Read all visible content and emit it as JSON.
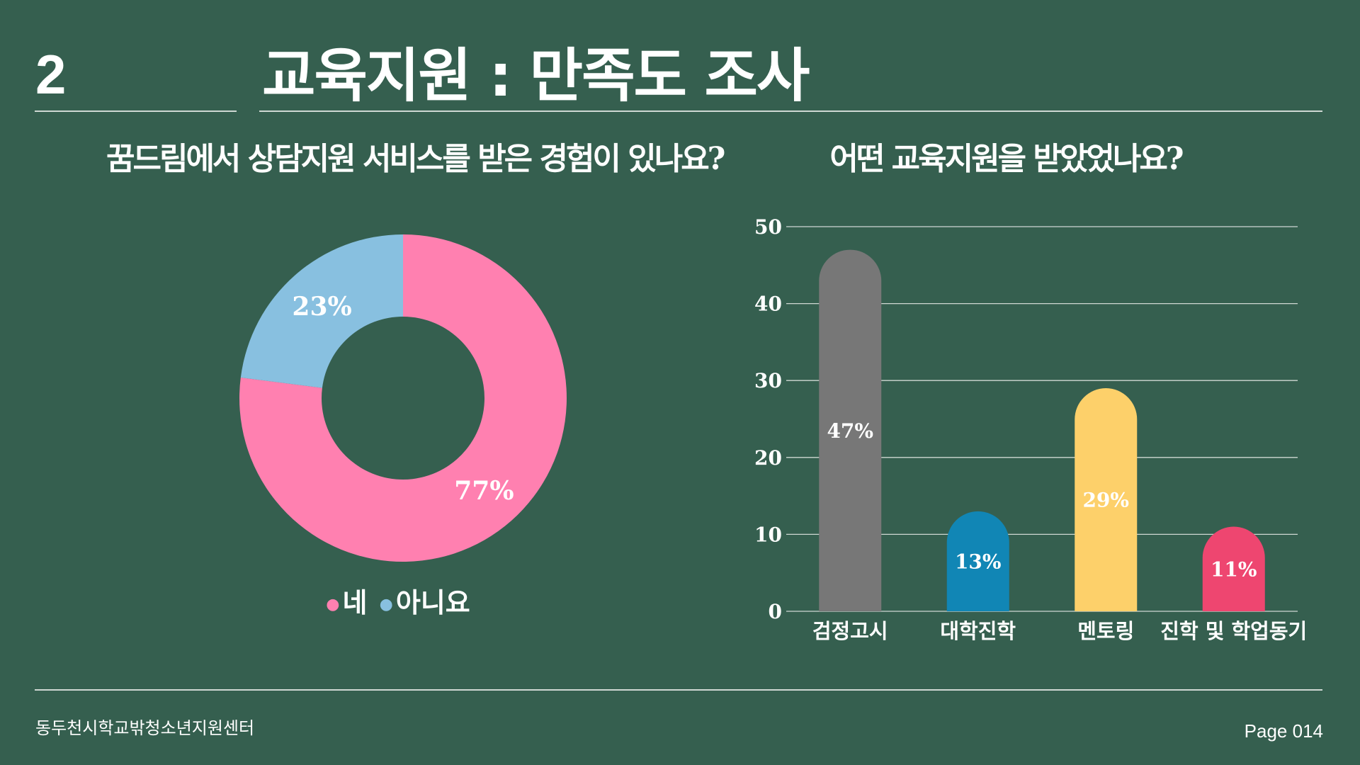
{
  "header": {
    "section_number": "2",
    "title": "교육지원 : 만족도 조사"
  },
  "footer": {
    "organization": "동두천시학교밖청소년지원센터",
    "page": "Page 014"
  },
  "colors": {
    "background": "#355f4f",
    "pie_yes": "#ff80b0",
    "pie_no": "#88c0e0",
    "bars": [
      "#777777",
      "#1186b5",
      "#fdd06a",
      "#ee4670"
    ],
    "grid": "#cfd8d3"
  },
  "chart_data": [
    {
      "type": "pie",
      "style": "donut",
      "title": "꿈드림에서 상담지원 서비스를 받은 경험이 있나요?",
      "categories": [
        "네",
        "아니요"
      ],
      "values": [
        77,
        23
      ],
      "data_labels": [
        "77%",
        "23%"
      ],
      "legend": {
        "placement": "bottom",
        "entries": [
          "네",
          "아니요"
        ]
      }
    },
    {
      "type": "bar",
      "title": "어떤 교육지원을 받았었나요?",
      "categories": [
        "검정고시",
        "대학진학",
        "멘토링",
        "진학 및 학업동기"
      ],
      "values": [
        47,
        13,
        29,
        11
      ],
      "data_labels": [
        "47%",
        "13%",
        "29%",
        "11%"
      ],
      "ylim": [
        0,
        50
      ],
      "yticks": [
        "0",
        "10",
        "20",
        "30",
        "40",
        "50"
      ],
      "grid": true
    }
  ]
}
